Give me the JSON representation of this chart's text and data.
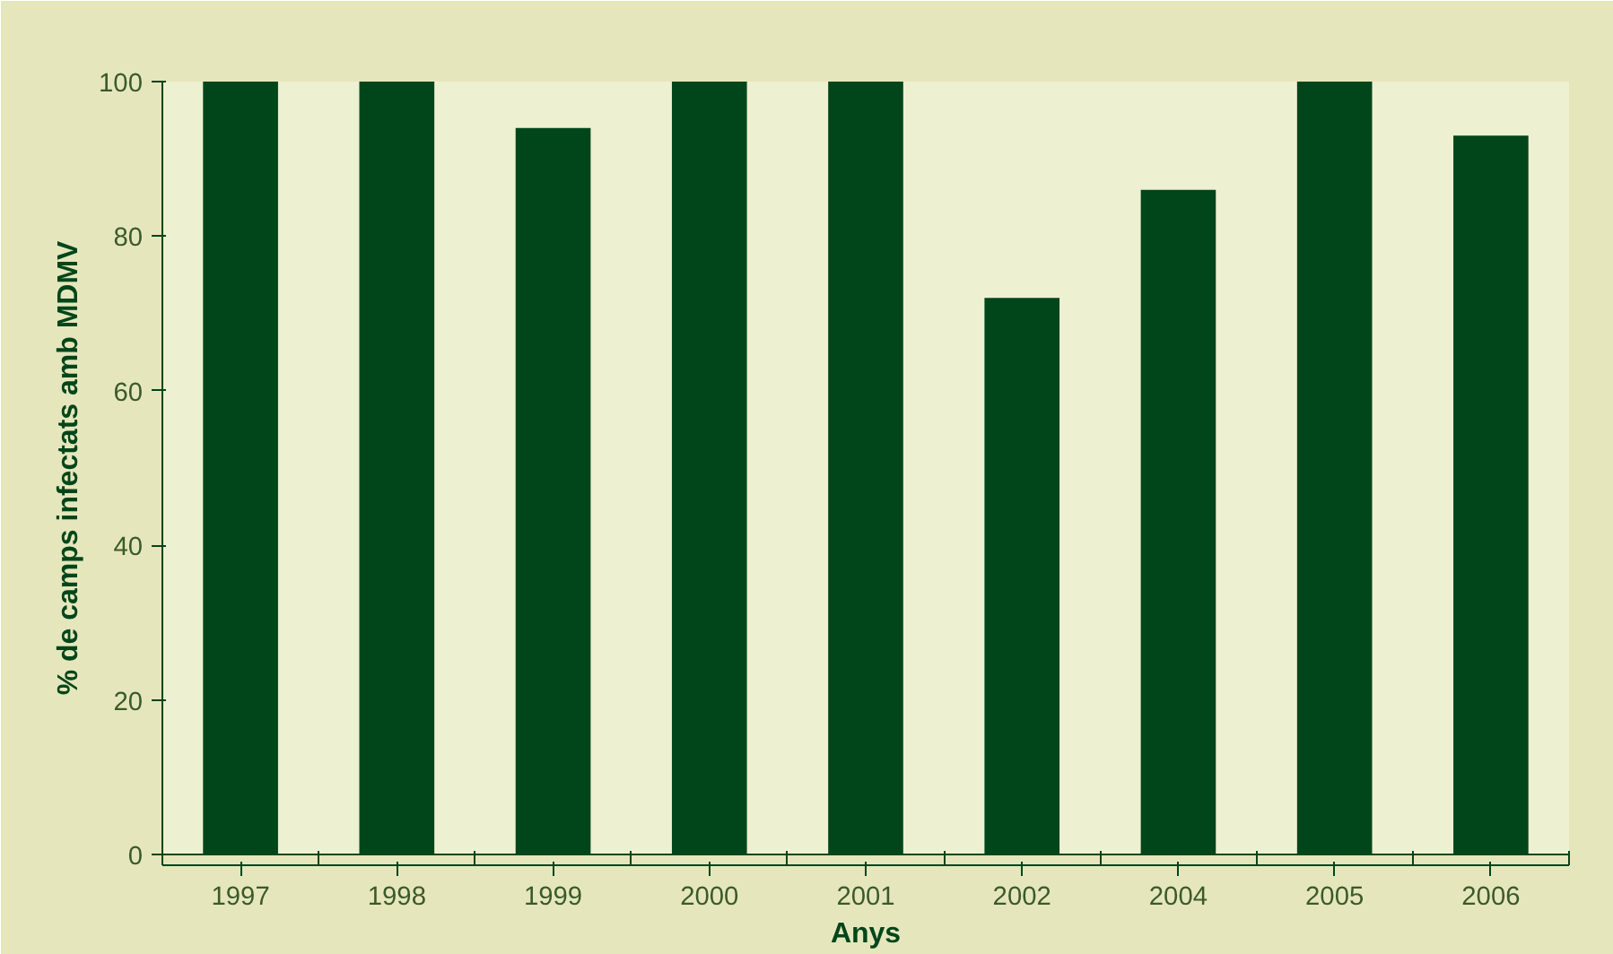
{
  "chart_data": {
    "type": "bar",
    "xlabel": "Anys",
    "ylabel": "% de camps infectats amb MDMV",
    "categories": [
      "1997",
      "1998",
      "1999",
      "2000",
      "2001",
      "2002",
      "2004",
      "2005",
      "2006"
    ],
    "values": [
      100,
      100,
      94,
      100,
      100,
      72,
      86,
      100,
      93
    ],
    "color": "#00461a",
    "ylim": [
      0,
      100
    ],
    "yticks": [
      0,
      20,
      40,
      60,
      80,
      100
    ],
    "grid": false
  }
}
